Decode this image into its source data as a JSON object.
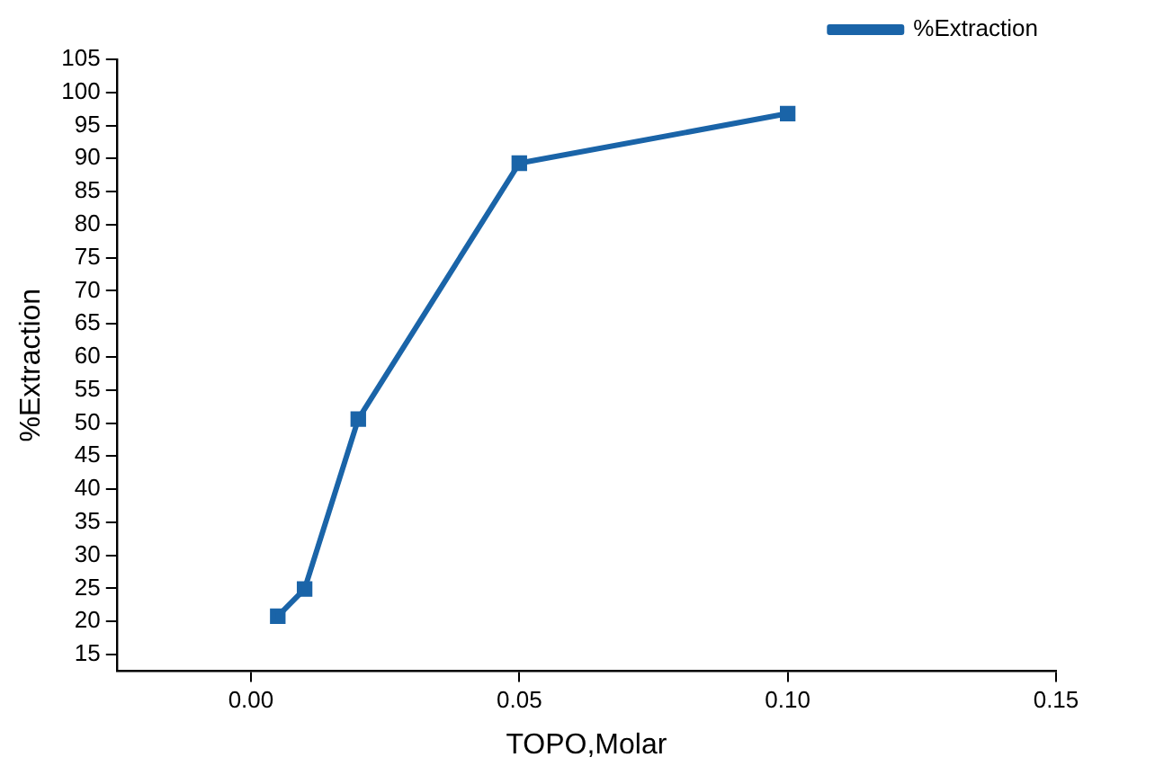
{
  "chart_data": {
    "type": "line",
    "xlabel": "TOPO,Molar",
    "ylabel": "%Extraction",
    "x": [
      0.005,
      0.01,
      0.02,
      0.05,
      0.1
    ],
    "series": [
      {
        "name": "%Extraction",
        "color": "#1a64a8",
        "values": [
          20.8,
          24.9,
          50.6,
          89.3,
          96.8
        ]
      }
    ],
    "xlim": [
      -0.025,
      0.15
    ],
    "xticks": [
      {
        "value": 0,
        "label": "0.00"
      },
      {
        "value": 0.05,
        "label": "0.05"
      },
      {
        "value": 0.1,
        "label": "0.10"
      },
      {
        "value": 0.15,
        "label": "0.15"
      }
    ],
    "ylim": [
      12.5,
      105
    ],
    "yticks": [
      15,
      20,
      25,
      30,
      35,
      40,
      45,
      50,
      55,
      60,
      65,
      70,
      75,
      80,
      85,
      90,
      95,
      100,
      105
    ],
    "grid": false,
    "legend": "top right",
    "marker": "square",
    "line_style": "solid"
  }
}
